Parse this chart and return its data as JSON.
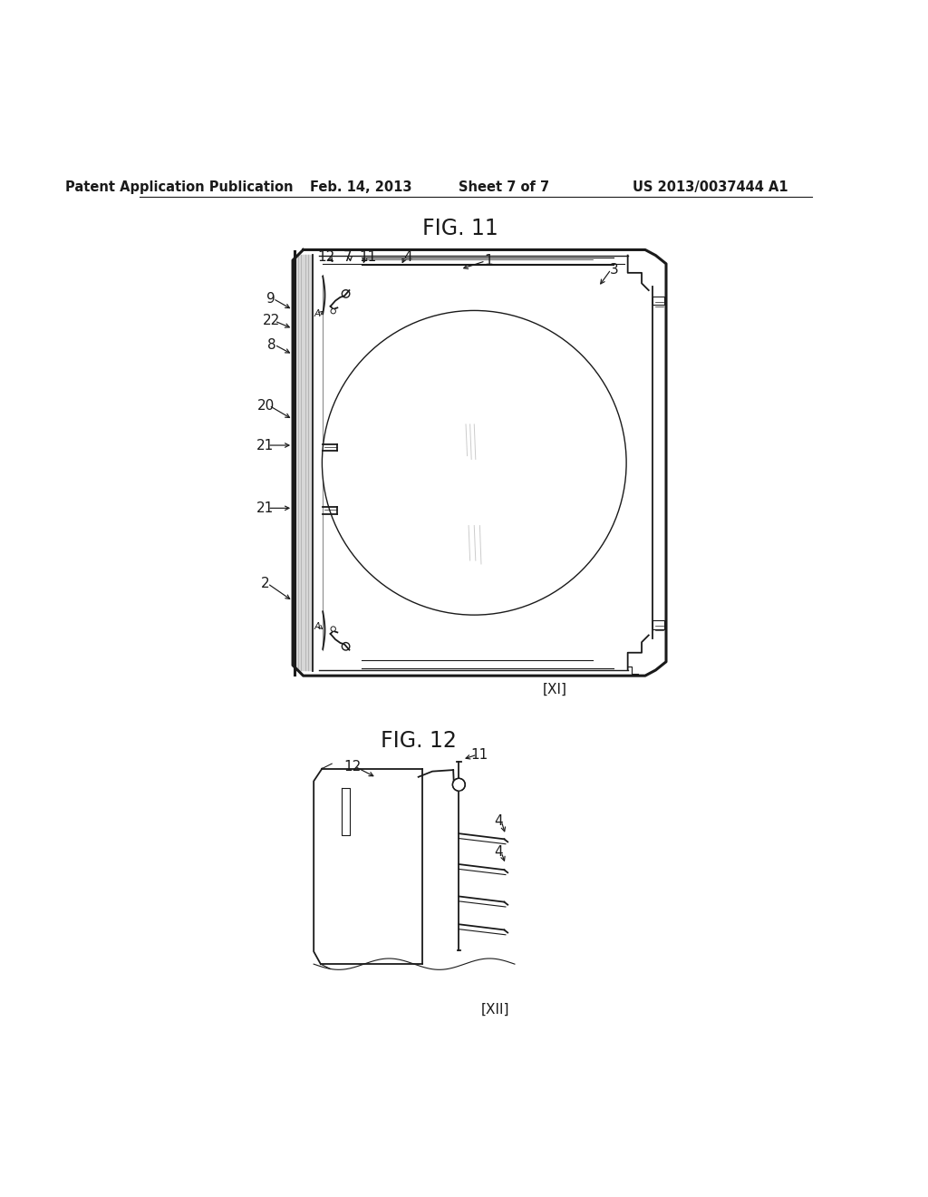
{
  "title": "Patent Application Publication",
  "date": "Feb. 14, 2013",
  "sheet": "Sheet 7 of 7",
  "patent_number": "US 2013/0037444 A1",
  "fig11_title": "FIG. 11",
  "fig12_title": "FIG. 12",
  "fig11_label": "[XI]",
  "fig12_label": "[XII]",
  "bg_color": "#ffffff",
  "line_color": "#1a1a1a",
  "header_fontsize": 10.5,
  "fig_title_fontsize": 17,
  "label_fontsize": 11
}
